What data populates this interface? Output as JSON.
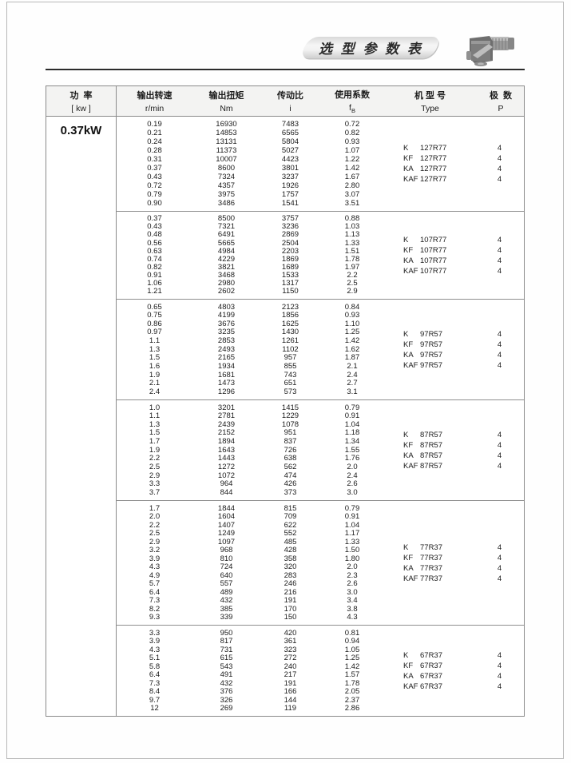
{
  "page": {
    "banner_title": "选 型 参 数 表",
    "power_rating": "0.37kW"
  },
  "table": {
    "headers": [
      {
        "l1": "功  率",
        "l2": "[ kw ]"
      },
      {
        "l1": "输出转速",
        "l2": "r/min"
      },
      {
        "l1": "输出扭矩",
        "l2": "Nm"
      },
      {
        "l1": "传动比",
        "l2": "i"
      },
      {
        "l1": "使用系数",
        "l2": "f",
        "l2_sub": "B"
      },
      {
        "l1": "机 型 号",
        "l2": "Type"
      },
      {
        "l1": "极  数",
        "l2": "P"
      }
    ],
    "blocks": [
      {
        "rpm": [
          "0.19",
          "0.21",
          "0.24",
          "0.28",
          "0.31",
          "0.37",
          "0.43",
          "0.72",
          "0.79",
          "0.90"
        ],
        "torque_nm": [
          "16930",
          "14853",
          "13131",
          "11373",
          "10007",
          "8600",
          "7324",
          "4357",
          "3975",
          "3486"
        ],
        "ratio": [
          "7483",
          "6565",
          "5804",
          "5027",
          "4423",
          "3801",
          "3237",
          "1926",
          "1757",
          "1541"
        ],
        "service_factor": [
          "0.72",
          "0.82",
          "0.93",
          "1.07",
          "1.22",
          "1.42",
          "1.67",
          "2.80",
          "3.07",
          "3.51"
        ],
        "types": [
          {
            "prefix": "K",
            "model": "127R77",
            "poles": "4"
          },
          {
            "prefix": "KF",
            "model": "127R77",
            "poles": "4"
          },
          {
            "prefix": "KA",
            "model": "127R77",
            "poles": "4"
          },
          {
            "prefix": "KAF",
            "model": "127R77",
            "poles": "4"
          }
        ]
      },
      {
        "rpm": [
          "0.37",
          "0.43",
          "0.48",
          "0.56",
          "0.63",
          "0.74",
          "0.82",
          "0.91",
          "1.06",
          "1.21"
        ],
        "torque_nm": [
          "8500",
          "7321",
          "6491",
          "5665",
          "4984",
          "4229",
          "3821",
          "3468",
          "2980",
          "2602"
        ],
        "ratio": [
          "3757",
          "3236",
          "2869",
          "2504",
          "2203",
          "1869",
          "1689",
          "1533",
          "1317",
          "1150"
        ],
        "service_factor": [
          "0.88",
          "1.03",
          "1.13",
          "1.33",
          "1.51",
          "1.78",
          "1.97",
          "2.2",
          "2.5",
          "2.9"
        ],
        "types": [
          {
            "prefix": "K",
            "model": "107R77",
            "poles": "4"
          },
          {
            "prefix": "KF",
            "model": "107R77",
            "poles": "4"
          },
          {
            "prefix": "KA",
            "model": "107R77",
            "poles": "4"
          },
          {
            "prefix": "KAF",
            "model": "107R77",
            "poles": "4"
          }
        ]
      },
      {
        "rpm": [
          "0.65",
          "0.75",
          "0.86",
          "0.97",
          "1.1",
          "1.3",
          "1.5",
          "1.6",
          "1.9",
          "2.1",
          "2.4"
        ],
        "torque_nm": [
          "4803",
          "4199",
          "3676",
          "3235",
          "2853",
          "2493",
          "2165",
          "1934",
          "1681",
          "1473",
          "1296"
        ],
        "ratio": [
          "2123",
          "1856",
          "1625",
          "1430",
          "1261",
          "1102",
          "957",
          "855",
          "743",
          "651",
          "573"
        ],
        "service_factor": [
          "0.84",
          "0.93",
          "1.10",
          "1.25",
          "1.42",
          "1.62",
          "1.87",
          "2.1",
          "2.4",
          "2.7",
          "3.1"
        ],
        "types": [
          {
            "prefix": "K",
            "model": "97R57",
            "poles": "4"
          },
          {
            "prefix": "KF",
            "model": "97R57",
            "poles": "4"
          },
          {
            "prefix": "KA",
            "model": "97R57",
            "poles": "4"
          },
          {
            "prefix": "KAF",
            "model": "97R57",
            "poles": "4"
          }
        ]
      },
      {
        "rpm": [
          "1.0",
          "1.1",
          "1.3",
          "1.5",
          "1.7",
          "1.9",
          "2.2",
          "2.5",
          "2.9",
          "3.3",
          "3.7"
        ],
        "torque_nm": [
          "3201",
          "2781",
          "2439",
          "2152",
          "1894",
          "1643",
          "1443",
          "1272",
          "1072",
          "964",
          "844"
        ],
        "ratio": [
          "1415",
          "1229",
          "1078",
          "951",
          "837",
          "726",
          "638",
          "562",
          "474",
          "426",
          "373"
        ],
        "service_factor": [
          "0.79",
          "0.91",
          "1.04",
          "1.18",
          "1.34",
          "1.55",
          "1.76",
          "2.0",
          "2.4",
          "2.6",
          "3.0"
        ],
        "types": [
          {
            "prefix": "K",
            "model": "87R57",
            "poles": "4"
          },
          {
            "prefix": "KF",
            "model": "87R57",
            "poles": "4"
          },
          {
            "prefix": "KA",
            "model": "87R57",
            "poles": "4"
          },
          {
            "prefix": "KAF",
            "model": "87R57",
            "poles": "4"
          }
        ]
      },
      {
        "rpm": [
          "1.7",
          "2.0",
          "2.2",
          "2.5",
          "2.9",
          "3.2",
          "3.9",
          "4.3",
          "4.9",
          "5.7",
          "6.4",
          "7.3",
          "8.2",
          "9.3"
        ],
        "torque_nm": [
          "1844",
          "1604",
          "1407",
          "1249",
          "1097",
          "968",
          "810",
          "724",
          "640",
          "557",
          "489",
          "432",
          "385",
          "339"
        ],
        "ratio": [
          "815",
          "709",
          "622",
          "552",
          "485",
          "428",
          "358",
          "320",
          "283",
          "246",
          "216",
          "191",
          "170",
          "150"
        ],
        "service_factor": [
          "0.79",
          "0.91",
          "1.04",
          "1.17",
          "1.33",
          "1.50",
          "1.80",
          "2.0",
          "2.3",
          "2.6",
          "3.0",
          "3.4",
          "3.8",
          "4.3"
        ],
        "types": [
          {
            "prefix": "K",
            "model": "77R37",
            "poles": "4"
          },
          {
            "prefix": "KF",
            "model": "77R37",
            "poles": "4"
          },
          {
            "prefix": "KA",
            "model": "77R37",
            "poles": "4"
          },
          {
            "prefix": "KAF",
            "model": "77R37",
            "poles": "4"
          }
        ]
      },
      {
        "rpm": [
          "3.3",
          "3.9",
          "4.3",
          "5.1",
          "5.8",
          "6.4",
          "7.3",
          "8.4",
          "9.7",
          "12"
        ],
        "torque_nm": [
          "950",
          "817",
          "731",
          "615",
          "543",
          "491",
          "432",
          "376",
          "326",
          "269"
        ],
        "ratio": [
          "420",
          "361",
          "323",
          "272",
          "240",
          "217",
          "191",
          "166",
          "144",
          "119"
        ],
        "service_factor": [
          "0.81",
          "0.94",
          "1.05",
          "1.25",
          "1.42",
          "1.57",
          "1.78",
          "2.05",
          "2.37",
          "2.86"
        ],
        "types": [
          {
            "prefix": "K",
            "model": "67R37",
            "poles": "4"
          },
          {
            "prefix": "KF",
            "model": "67R37",
            "poles": "4"
          },
          {
            "prefix": "KA",
            "model": "67R37",
            "poles": "4"
          },
          {
            "prefix": "KAF",
            "model": "67R37",
            "poles": "4"
          }
        ]
      }
    ]
  }
}
